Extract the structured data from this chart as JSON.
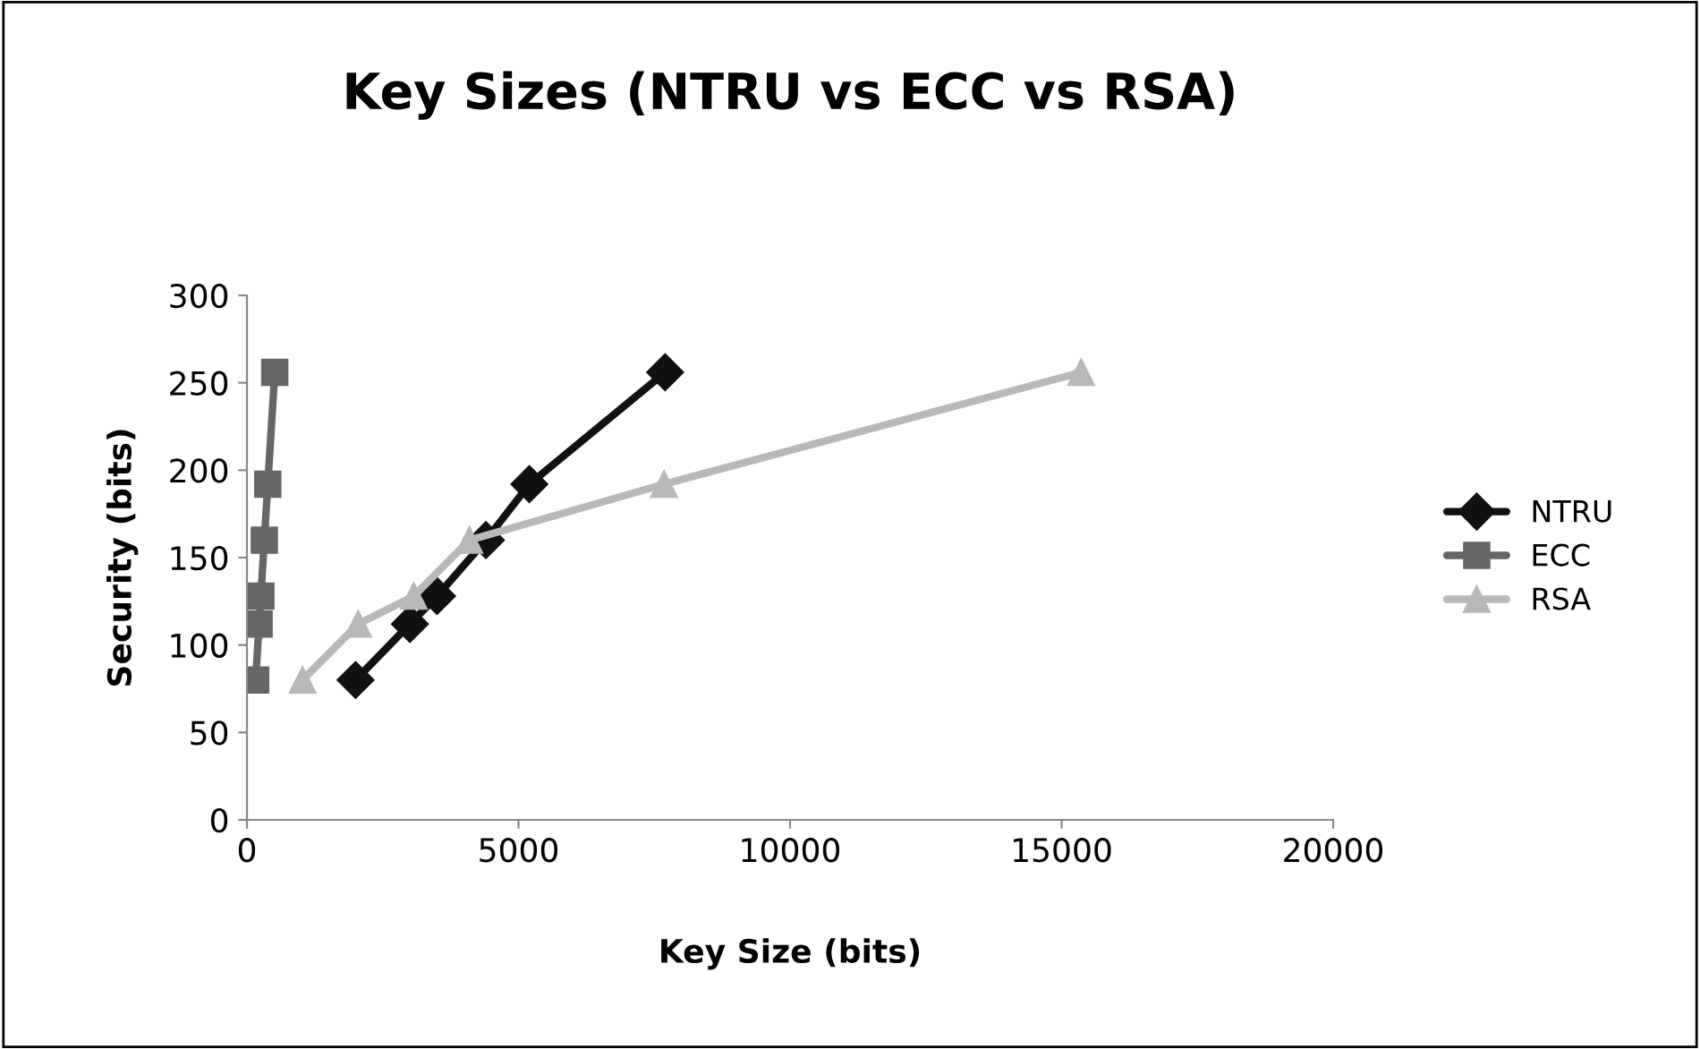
{
  "chart_data": {
    "type": "line",
    "title": "Key Sizes (NTRU vs ECC vs RSA)",
    "xlabel": "Key Size (bits)",
    "ylabel": "Security (bits)",
    "series": [
      {
        "name": "NTRU",
        "color": "#111111",
        "marker": "diamond",
        "x": [
          2000,
          3000,
          3500,
          4400,
          5200,
          7700
        ],
        "values": [
          80,
          112,
          128,
          160,
          192,
          256
        ]
      },
      {
        "name": "ECC",
        "color": "#666666",
        "marker": "square",
        "x": [
          160,
          224,
          256,
          320,
          384,
          512
        ],
        "values": [
          80,
          112,
          128,
          160,
          192,
          256
        ]
      },
      {
        "name": "RSA",
        "color": "#b8b8b8",
        "marker": "triangle",
        "x": [
          1024,
          2048,
          3072,
          4096,
          7680,
          15360
        ],
        "values": [
          80,
          112,
          128,
          160,
          192,
          256
        ]
      }
    ],
    "xlim": [
      0,
      20000
    ],
    "xticks": [
      0,
      5000,
      10000,
      15000,
      20000
    ],
    "ylim": [
      0,
      300
    ],
    "yticks": [
      0,
      50,
      100,
      150,
      200,
      250,
      300
    ],
    "grid": false,
    "legend": "right"
  }
}
